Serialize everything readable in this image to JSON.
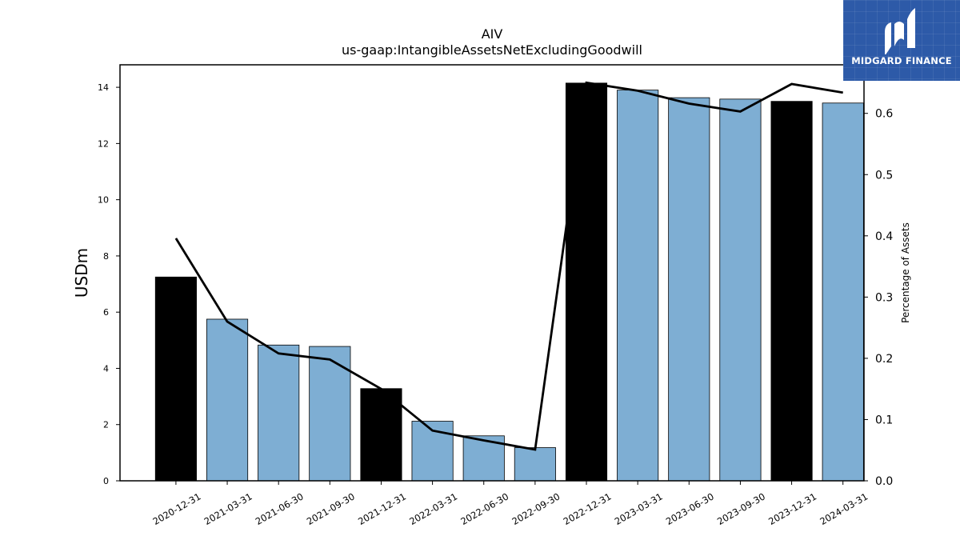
{
  "logo": {
    "text": "MIDGARD FINANCE",
    "icon": "midgard-m-icon",
    "background": "#2d5aa8"
  },
  "chart_data": {
    "type": "bar",
    "title": "AIV",
    "subtitle": "us-gaap:IntangibleAssetsNetExcludingGoodwill",
    "ylabel": "USDm",
    "y2label": "Percentage of Assets",
    "categories": [
      "2020-12-31",
      "2021-03-31",
      "2021-06-30",
      "2021-09-30",
      "2021-12-31",
      "2022-03-31",
      "2022-06-30",
      "2022-09-30",
      "2022-12-31",
      "2023-03-31",
      "2023-06-30",
      "2023-09-30",
      "2023-12-31",
      "2024-03-31"
    ],
    "series": [
      {
        "type": "bar",
        "axis": "left",
        "values": [
          7.25,
          5.75,
          4.83,
          4.78,
          3.28,
          2.12,
          1.6,
          1.18,
          14.15,
          13.9,
          13.63,
          13.58,
          13.5,
          13.44
        ],
        "colors": [
          "#000000",
          "#7eaed3",
          "#7eaed3",
          "#7eaed3",
          "#000000",
          "#7eaed3",
          "#7eaed3",
          "#7eaed3",
          "#000000",
          "#7eaed3",
          "#7eaed3",
          "#7eaed3",
          "#000000",
          "#7eaed3"
        ]
      },
      {
        "type": "line",
        "axis": "right",
        "color": "#000000",
        "values": [
          0.396,
          0.26,
          0.208,
          0.198,
          0.15,
          0.082,
          0.066,
          0.051,
          0.65,
          0.637,
          0.616,
          0.603,
          0.648,
          0.634
        ]
      }
    ],
    "ylim": [
      0,
      14.8
    ],
    "yticks": [
      0,
      2,
      4,
      6,
      8,
      10,
      12,
      14
    ],
    "y2lim": [
      0,
      0.6793
    ],
    "y2ticks": [
      "0.0",
      "0.1",
      "0.2",
      "0.3",
      "0.4",
      "0.5",
      "0.6"
    ],
    "grid": false,
    "legend": "none"
  }
}
